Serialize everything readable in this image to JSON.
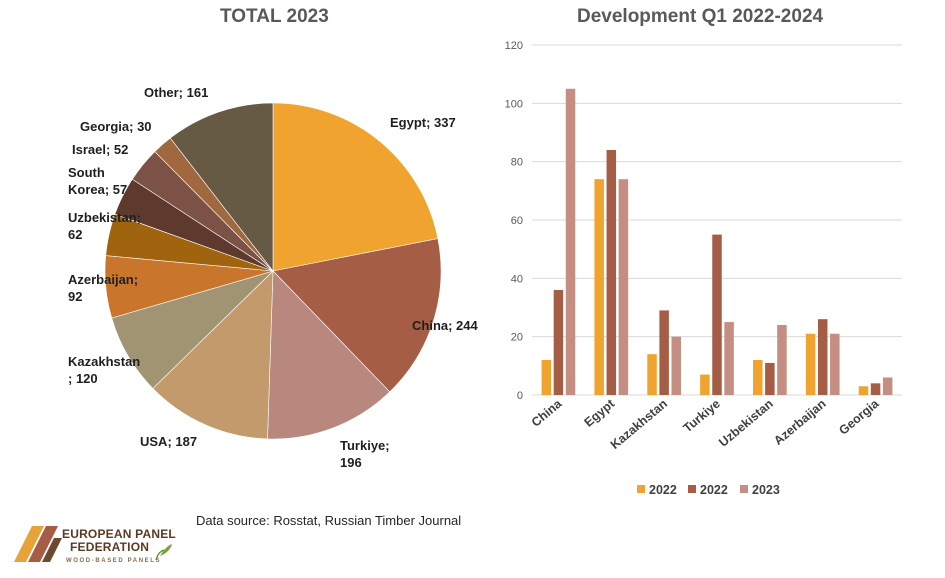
{
  "pie_title": "TOTAL 2023",
  "bar_title": "Development Q1 2022-2024",
  "source": "Data source: Rosstat, Russian Timber Journal",
  "logo": {
    "line1": "EUROPEAN PANEL",
    "line2": "FEDERATION",
    "line3": "WOOD-BASED PANELS"
  },
  "colors": {
    "s2022a": "#f0a32e",
    "s2022b": "#a65d45",
    "s2023": "#c48f82",
    "grid": "#d9d9d9"
  },
  "chart_data": [
    {
      "type": "pie",
      "title": "TOTAL 2023",
      "slices": [
        {
          "label": "Egypt; 337",
          "name": "Egypt",
          "value": 337,
          "color": "#f0a32e"
        },
        {
          "label": "China; 244",
          "name": "China",
          "value": 244,
          "color": "#a65d45"
        },
        {
          "label": "Turkiye;\n196",
          "name": "Turkiye",
          "value": 196,
          "color": "#b8877e"
        },
        {
          "label": "USA; 187",
          "name": "USA",
          "value": 187,
          "color": "#c29a6b"
        },
        {
          "label": "Kazakhstan\n; 120",
          "name": "Kazakhstan",
          "value": 120,
          "color": "#a09473"
        },
        {
          "label": "Azerbaijan;\n92",
          "name": "Azerbaijan",
          "value": 92,
          "color": "#c9762c"
        },
        {
          "label": "Uzbekistan;\n62",
          "name": "Uzbekistan",
          "value": 62,
          "color": "#a0640f"
        },
        {
          "label": "South\nKorea; 57",
          "name": "South Korea",
          "value": 57,
          "color": "#5e3a2e"
        },
        {
          "label": "Israel; 52",
          "name": "Israel",
          "value": 52,
          "color": "#7d5246"
        },
        {
          "label": "Georgia; 30",
          "name": "Georgia",
          "value": 30,
          "color": "#a0683e"
        },
        {
          "label": "Other; 161",
          "name": "Other",
          "value": 161,
          "color": "#665a44"
        }
      ]
    },
    {
      "type": "bar",
      "title": "Development Q1 2022-2024",
      "categories": [
        "China",
        "Egypt",
        "Kazakhstan",
        "Turkiye",
        "Uzbekistan",
        "Azerbaijan",
        "Georgia"
      ],
      "ylim": [
        0,
        120
      ],
      "yticks": [
        0,
        20,
        40,
        60,
        80,
        100,
        120
      ],
      "grid": true,
      "legend_position": "bottom",
      "series": [
        {
          "name": "2022",
          "color": "#f0a32e",
          "values": [
            12,
            74,
            14,
            7,
            12,
            21,
            3
          ]
        },
        {
          "name": "2022",
          "color": "#a65d45",
          "values": [
            36,
            84,
            29,
            55,
            11,
            26,
            4
          ]
        },
        {
          "name": "2023",
          "color": "#c48f82",
          "values": [
            105,
            74,
            20,
            25,
            24,
            21,
            6
          ]
        }
      ]
    }
  ]
}
